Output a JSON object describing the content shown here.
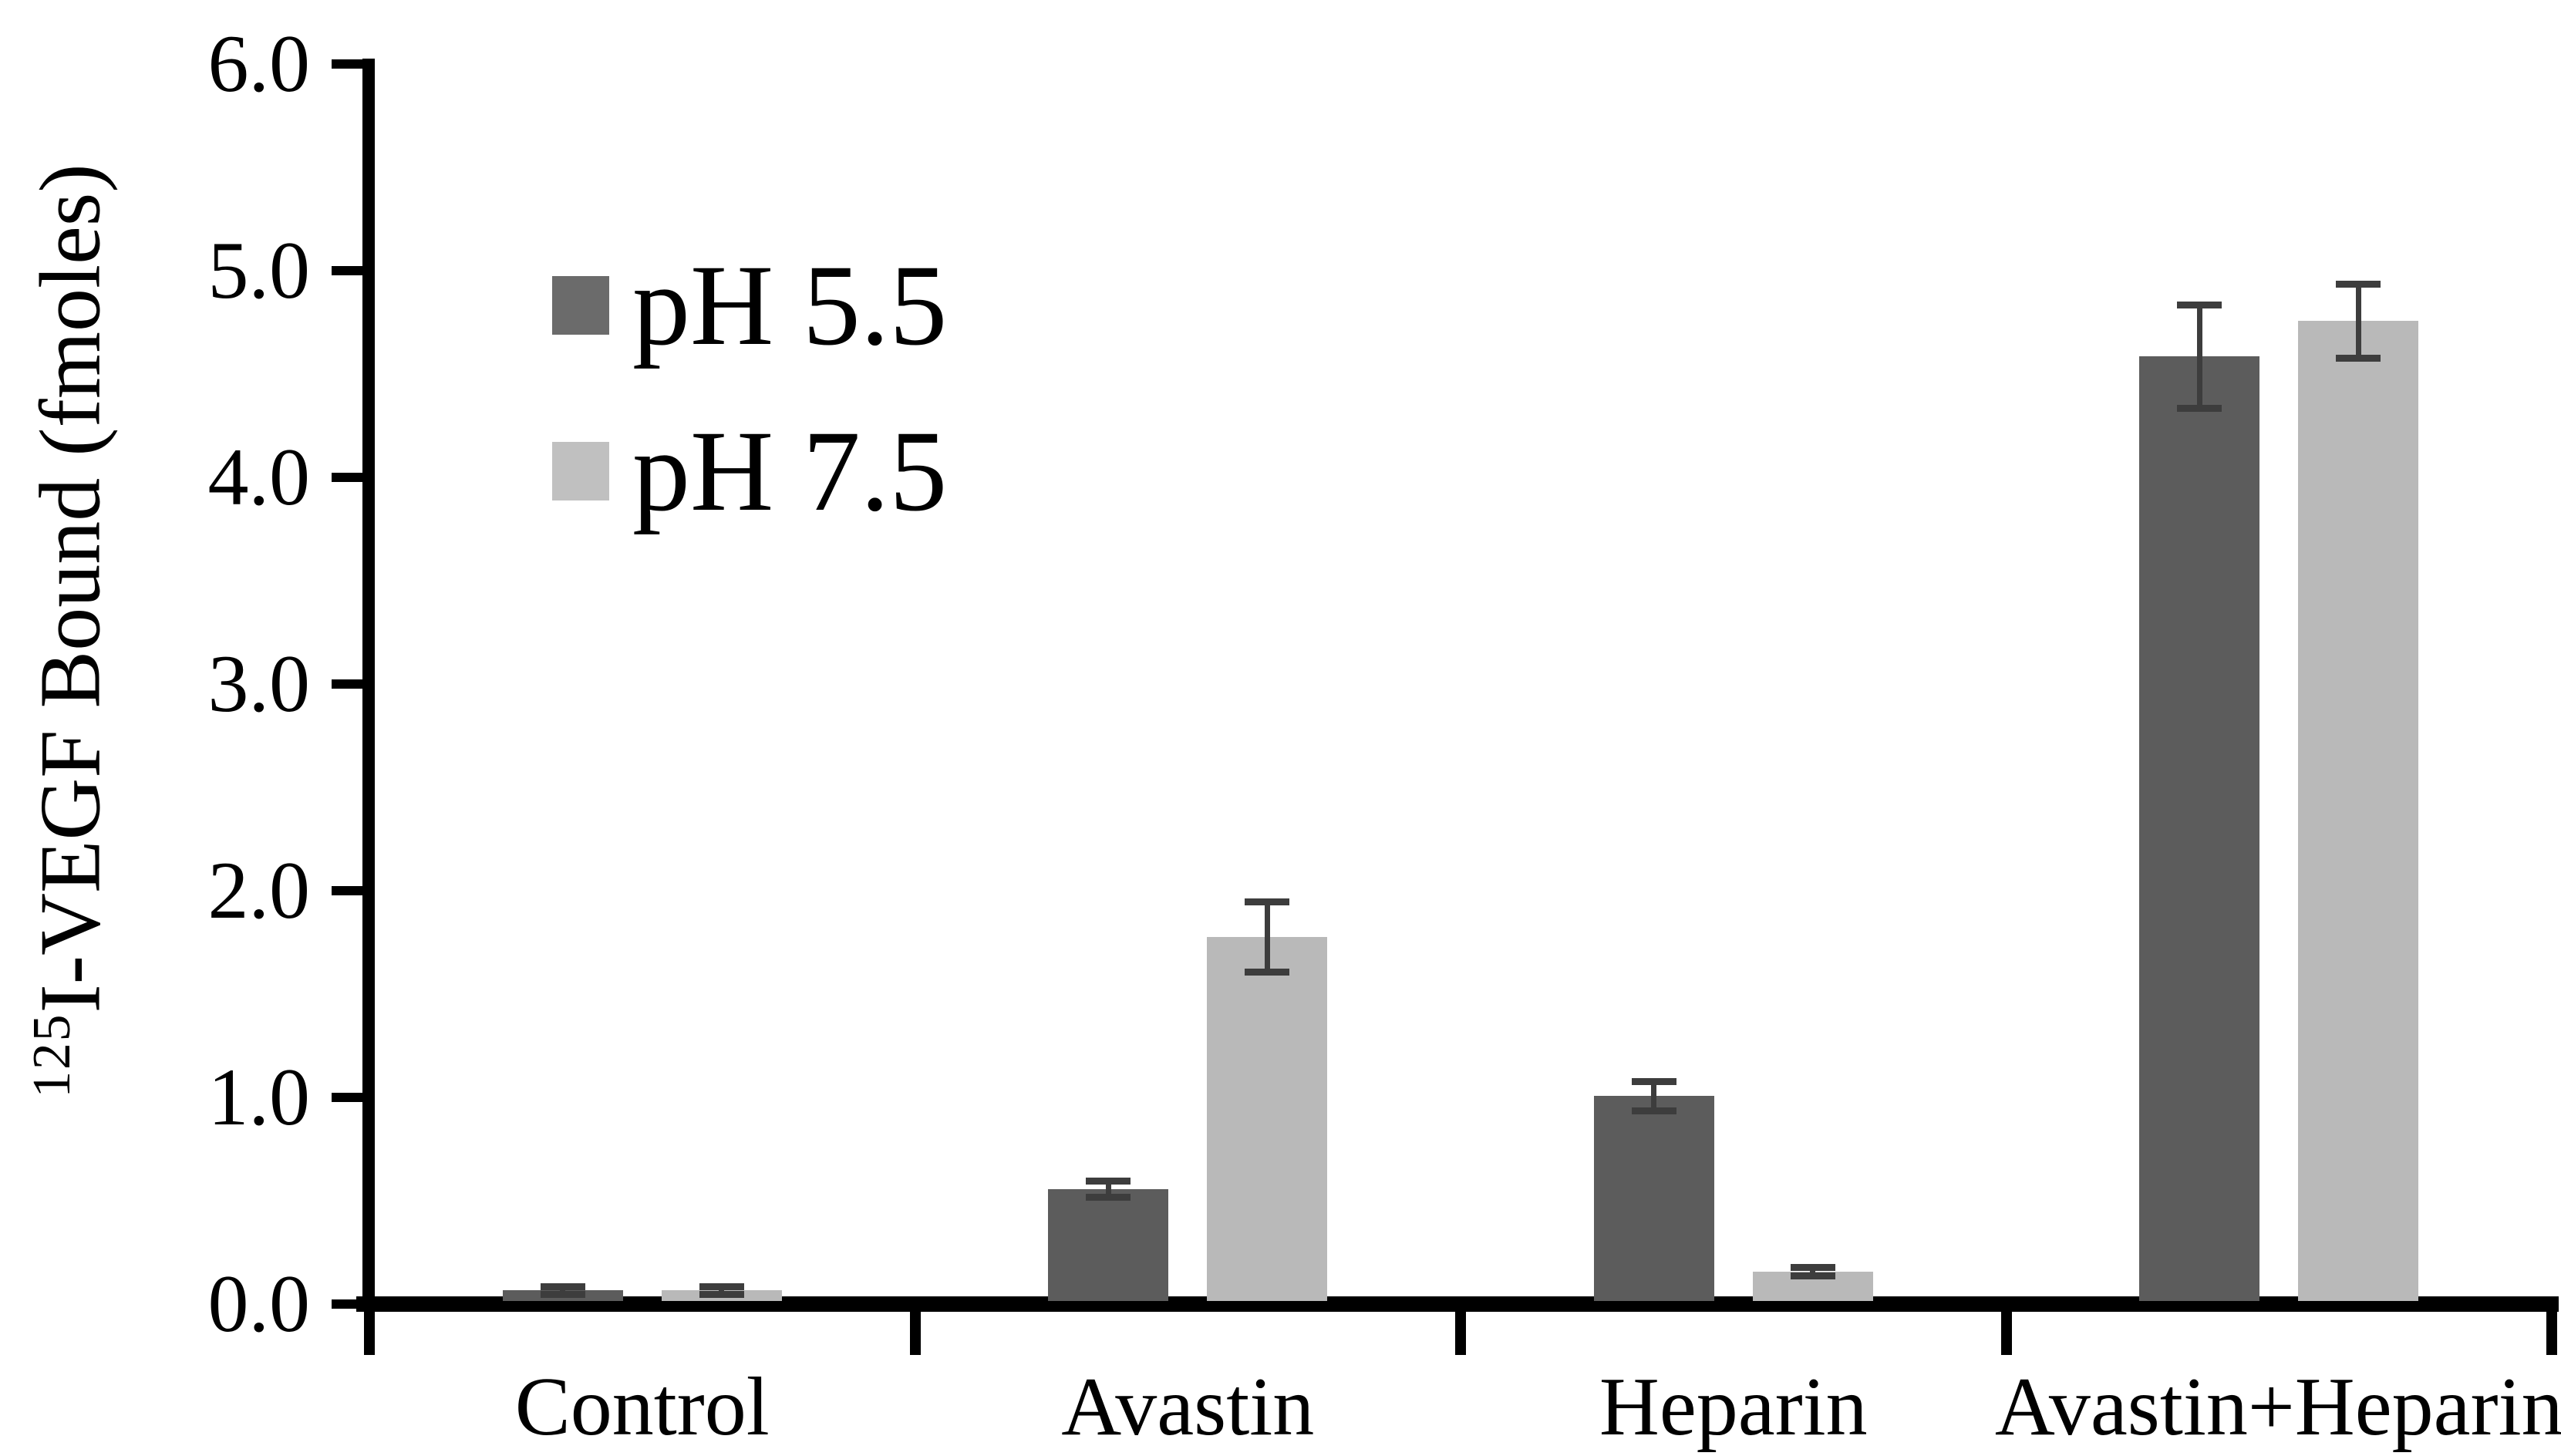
{
  "figure": {
    "background": "#ffffff"
  },
  "chart_data": {
    "type": "bar",
    "title": "",
    "categories": [
      "Control",
      "Avastin",
      "Heparin",
      "Avastin+Heparin"
    ],
    "series": [
      {
        "name": "pH 5.5",
        "color": "#5c5c5c",
        "legend_color": "#6b6b6b",
        "values": [
          0.03,
          0.52,
          0.97,
          4.55
        ],
        "errors": [
          0.02,
          0.04,
          0.07,
          0.25
        ]
      },
      {
        "name": "pH 7.5",
        "color": "#b9b9b9",
        "legend_color": "#c0c0c0",
        "values": [
          0.03,
          1.74,
          0.12,
          4.72
        ],
        "errors": [
          0.02,
          0.17,
          0.02,
          0.18
        ]
      }
    ],
    "xlabel": "",
    "ylabel_superscript": "125",
    "ylabel_text": "I-VEGF Bound (fmoles)",
    "ylim": [
      0,
      6
    ],
    "ytick_step": 1,
    "ytick_labels": [
      "0.0",
      "1.0",
      "2.0",
      "3.0",
      "4.0",
      "5.0",
      "6.0"
    ],
    "grid": false,
    "legend_position": "upper-left-inside",
    "axis_color": "#000000",
    "error_bar_color": "#3d3d3d",
    "text_color": "#000000"
  }
}
